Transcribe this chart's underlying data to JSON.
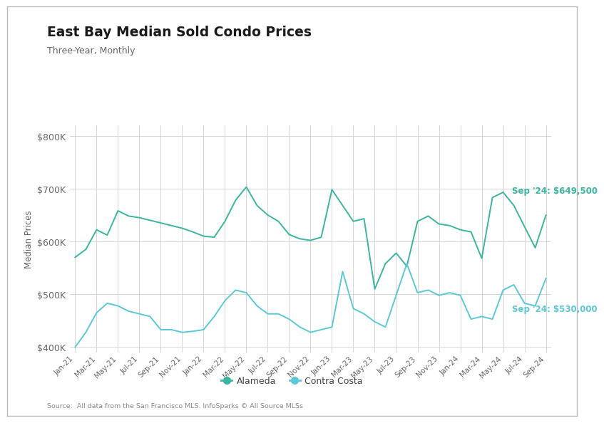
{
  "title": "East Bay Median Sold Condo Prices",
  "subtitle": "Three-Year, Monthly",
  "ylabel": "Median Prices",
  "source": "Source:  All data from the San Francisco MLS. InfoSparks © All Source MLSs",
  "ylim": [
    390000,
    820000
  ],
  "yticks": [
    400000,
    500000,
    600000,
    700000,
    800000
  ],
  "background_color": "#ffffff",
  "grid_color": "#d0d0d0",
  "alameda_color": "#3ab5a0",
  "contra_costa_color": "#5bc8d8",
  "annotation_color_alameda": "#3ab5a0",
  "annotation_color_cc": "#5bc8d8",
  "tick_labels": [
    "Jan-21",
    "Mar-21",
    "May-21",
    "Jul-21",
    "Sep-21",
    "Nov-21",
    "Jan-22",
    "Mar-22",
    "May-22",
    "Jul-22",
    "Sep-22",
    "Nov-22",
    "Jan-23",
    "Mar-23",
    "May-23",
    "Jul-23",
    "Sep-23",
    "Nov-23",
    "Jan-24",
    "Mar-24",
    "May-24",
    "Jul-24",
    "Sep-24"
  ],
  "alameda": [
    570000,
    585000,
    622000,
    612000,
    658000,
    648000,
    645000,
    640000,
    635000,
    630000,
    625000,
    618000,
    610000,
    608000,
    638000,
    678000,
    703000,
    668000,
    650000,
    638000,
    613000,
    605000,
    602000,
    608000,
    698000,
    668000,
    638000,
    643000,
    510000,
    558000,
    578000,
    553000,
    638000,
    648000,
    633000,
    630000,
    622000,
    618000,
    568000,
    683000,
    693000,
    668000,
    628000,
    588000,
    649500
  ],
  "contra_costa": [
    400000,
    428000,
    465000,
    483000,
    478000,
    468000,
    463000,
    458000,
    433000,
    433000,
    428000,
    430000,
    433000,
    458000,
    488000,
    508000,
    503000,
    478000,
    463000,
    463000,
    453000,
    438000,
    428000,
    433000,
    438000,
    543000,
    473000,
    463000,
    448000,
    438000,
    498000,
    558000,
    503000,
    508000,
    498000,
    503000,
    498000,
    453000,
    458000,
    453000,
    508000,
    518000,
    483000,
    478000,
    530000
  ],
  "ann_alameda_label": "Sep '24: $649,500",
  "ann_cc_label": "Sep '24: $530,000",
  "legend_alameda": "Alameda",
  "legend_cc": "Contra Costa"
}
